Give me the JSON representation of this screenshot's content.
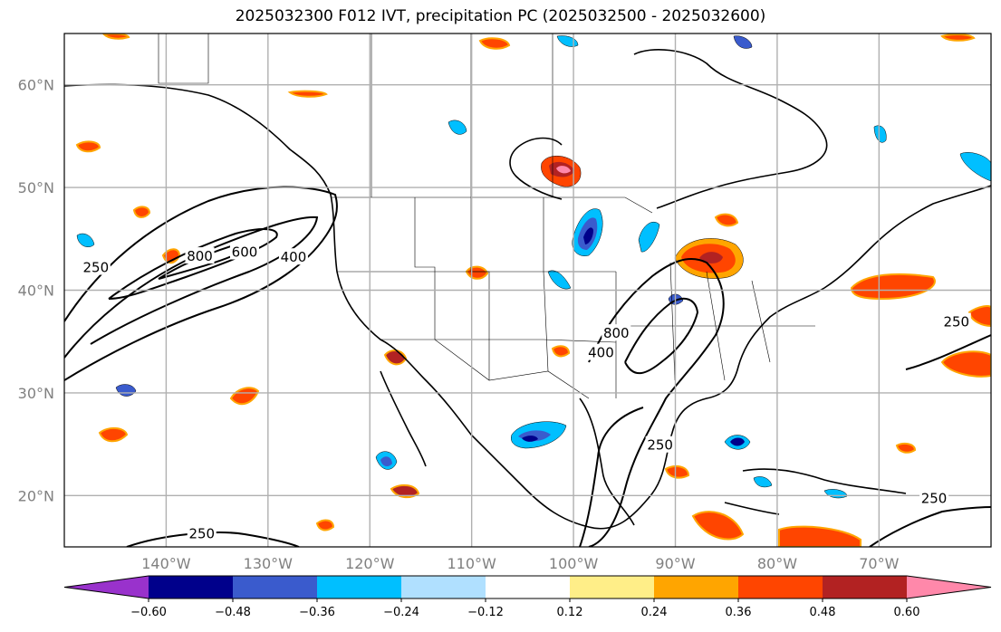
{
  "title": "2025032300 F012 IVT, precipitation PC (2025032500 - 2025032600)",
  "map": {
    "lon_range": [
      -150,
      -59
    ],
    "lat_range": [
      15,
      65
    ],
    "lat_ticks": [
      {
        "value": 60,
        "label": "60°N"
      },
      {
        "value": 50,
        "label": "50°N"
      },
      {
        "value": 40,
        "label": "40°N"
      },
      {
        "value": 30,
        "label": "30°N"
      },
      {
        "value": 20,
        "label": "20°N"
      }
    ],
    "lon_ticks": [
      {
        "value": -140,
        "label": "140°W"
      },
      {
        "value": -130,
        "label": "130°W"
      },
      {
        "value": -120,
        "label": "120°W"
      },
      {
        "value": -110,
        "label": "110°W"
      },
      {
        "value": -100,
        "label": "100°W"
      },
      {
        "value": -90,
        "label": "90°W"
      },
      {
        "value": -80,
        "label": "80°W"
      },
      {
        "value": -70,
        "label": "70°W"
      }
    ],
    "grid": true,
    "ivt_contour_labels": [
      {
        "text": "250",
        "lon": -146.9,
        "lat": 42.2
      },
      {
        "text": "800",
        "lon": -136.7,
        "lat": 43.3
      },
      {
        "text": "600",
        "lon": -132.3,
        "lat": 43.7
      },
      {
        "text": "400",
        "lon": -127.5,
        "lat": 43.2
      },
      {
        "text": "400",
        "lon": -97.3,
        "lat": 33.9
      },
      {
        "text": "800",
        "lon": -95.8,
        "lat": 35.8
      },
      {
        "text": "250",
        "lon": -91.5,
        "lat": 24.9
      },
      {
        "text": "250",
        "lon": -62.4,
        "lat": 36.9
      },
      {
        "text": "250",
        "lon": -64.6,
        "lat": 19.7
      },
      {
        "text": "250",
        "lon": -136.5,
        "lat": 16.3
      }
    ]
  },
  "colorbar": {
    "colors": [
      "#9932cc",
      "#00008b",
      "#3a5bcd",
      "#00bfff",
      "#b0e0ff",
      "#ffffff",
      "#ffee88",
      "#ffa500",
      "#ff4500",
      "#b22222",
      "#ff88aa"
    ],
    "labels": [
      "−0.60",
      "−0.48",
      "−0.36",
      "−0.24",
      "−0.12",
      "0.12",
      "0.24",
      "0.36",
      "0.48",
      "0.60"
    ]
  }
}
